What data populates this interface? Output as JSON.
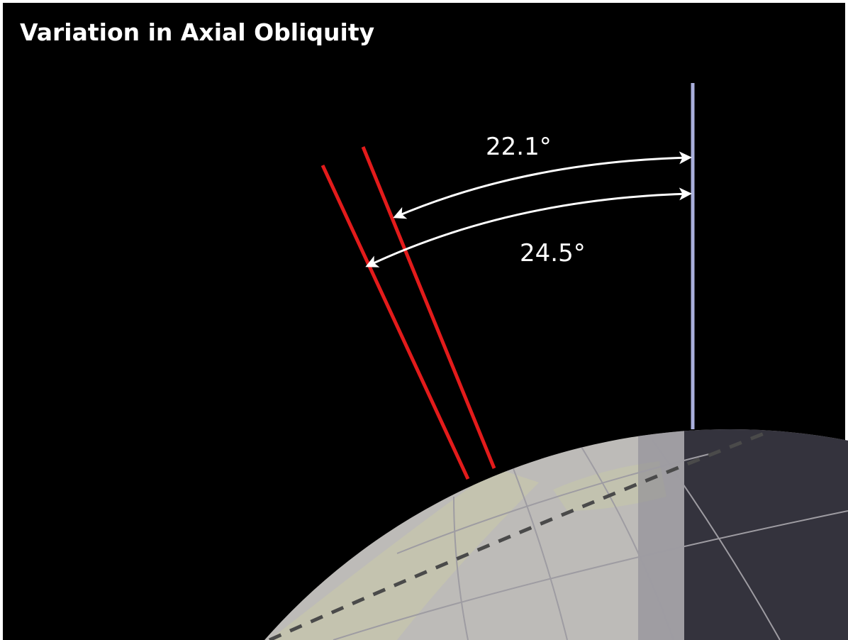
{
  "title": "Variation in Axial Obliquity",
  "angles": [
    {
      "label": "22.1°"
    },
    {
      "label": "24.5°"
    }
  ]
}
